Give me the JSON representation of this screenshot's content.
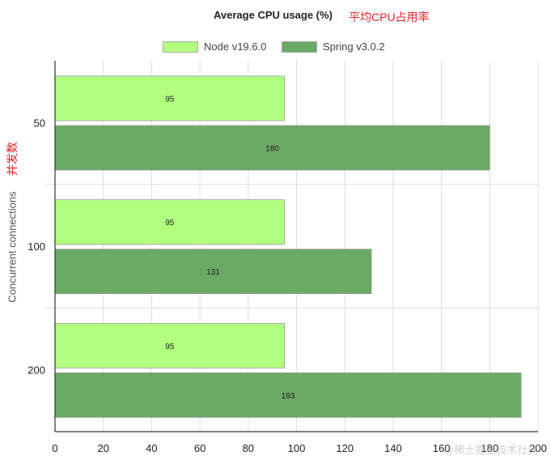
{
  "title_cn": "平均CPU占用率",
  "ylabel_cn": "并发数",
  "watermark": "@稀土掘金技术社区",
  "chart_data": {
    "type": "bar",
    "orientation": "horizontal",
    "title": "Average CPU usage (%)",
    "xlabel": "",
    "ylabel": "Concurrent connections",
    "categories": [
      "50",
      "100",
      "200"
    ],
    "series": [
      {
        "name": "Node v19.6.0",
        "color": "#b3ff80",
        "values": [
          95,
          95,
          95
        ]
      },
      {
        "name": "Spring v3.0.2",
        "color": "#6aaa64",
        "values": [
          180,
          131,
          193
        ]
      }
    ],
    "xlim": [
      0,
      200
    ],
    "xticks": [
      0,
      20,
      40,
      60,
      80,
      100,
      120,
      140,
      160,
      180,
      200
    ],
    "grid": true,
    "legend": "top-center"
  }
}
